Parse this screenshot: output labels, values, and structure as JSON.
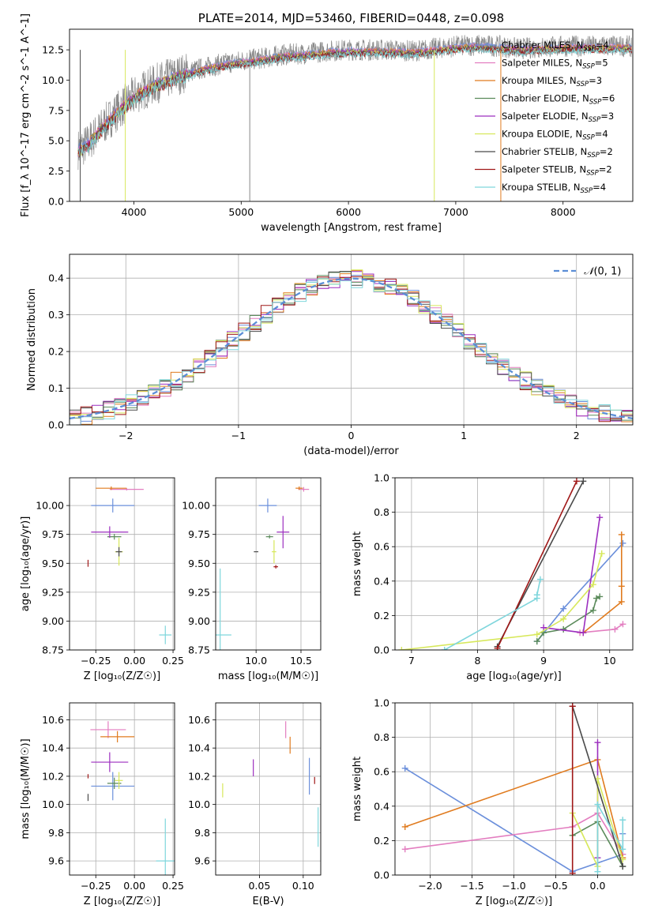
{
  "figure_title": "PLATE=2014, MJD=53460, FIBERID=0448, z=0.098",
  "legend_top": [
    {
      "label": "Chabrier MILES, N_SSP=4",
      "color": "#6b8fdb"
    },
    {
      "label": "Salpeter MILES, N_SSP=5",
      "color": "#e37ec0"
    },
    {
      "label": "Kroupa MILES, N_SSP=3",
      "color": "#e07b1f"
    },
    {
      "label": "Chabrier ELODIE, N_SSP=6",
      "color": "#5a8a5a"
    },
    {
      "label": "Salpeter ELODIE, N_SSP=3",
      "color": "#9c2fbf"
    },
    {
      "label": "Kroupa ELODIE, N_SSP=4",
      "color": "#d7e85b"
    },
    {
      "label": "Chabrier STELIB, N_SSP=2",
      "color": "#4a4a4a"
    },
    {
      "label": "Salpeter STELIB, N_SSP=2",
      "color": "#a01818"
    },
    {
      "label": "Kroupa STELIB, N_SSP=4",
      "color": "#7fd6dc"
    }
  ],
  "chart_data": [
    {
      "type": "line",
      "id": "spectrum",
      "xlabel": "wavelength [Angstrom, rest frame]",
      "ylabel": "Flux [f_λ 10^-17 erg cm^-2 s^-1 A^-1]",
      "xlim": [
        3400,
        8650
      ],
      "ylim": [
        0,
        14.2
      ],
      "xticks": [
        4000,
        5000,
        6000,
        7000,
        8000
      ],
      "yticks": [
        0.0,
        2.5,
        5.0,
        7.5,
        10.0,
        12.5
      ],
      "data_curve": {
        "x": [
          3480,
          3560,
          3650,
          3750,
          3850,
          3950,
          4050,
          4200,
          4400,
          4600,
          4800,
          5000,
          5200,
          5400,
          5600,
          5800,
          6000,
          6200,
          6400,
          6600,
          6800,
          7000,
          7200,
          7400,
          7600,
          7800,
          8000,
          8300,
          8600
        ],
        "y": [
          4.3,
          4.7,
          5.6,
          6.6,
          7.5,
          8.3,
          9.0,
          9.7,
          10.4,
          10.9,
          11.3,
          11.6,
          11.8,
          12.1,
          12.2,
          12.4,
          12.5,
          12.5,
          12.5,
          12.4,
          12.6,
          12.8,
          12.9,
          12.8,
          12.6,
          12.7,
          12.8,
          12.8,
          12.8
        ]
      },
      "vertical_artifacts": [
        {
          "x": 3500,
          "color": "#4a4a4a"
        },
        {
          "x": 3920,
          "color": "#d7e85b"
        },
        {
          "x": 5080,
          "color": "#888888"
        },
        {
          "x": 6800,
          "color": "#d7e85b"
        },
        {
          "x": 7420,
          "color": "#e07b1f"
        }
      ]
    },
    {
      "type": "bar",
      "id": "residuals",
      "xlabel": "(data-model)/error",
      "ylabel": "Normed distribution",
      "xlim": [
        -2.5,
        2.5
      ],
      "ylim": [
        0,
        0.465
      ],
      "xticks": [
        -2,
        -1,
        0,
        1,
        2
      ],
      "yticks": [
        0.0,
        0.1,
        0.2,
        0.3,
        0.4
      ],
      "bin_width": 0.1,
      "gaussian_label": "N(0,1)",
      "gaussian_color": "#5b8ed6",
      "noise_amplitude": 0.025
    },
    {
      "type": "scatter",
      "id": "age-vs-Z",
      "xlabel": "Z [log10(Z/Z☉)]",
      "ylabel": "age  [log10(age/yr)]",
      "xlim": [
        -0.42,
        0.26
      ],
      "ylim": [
        8.75,
        10.24
      ],
      "xticks": [
        -0.25,
        0.0,
        0.25
      ],
      "yticks": [
        8.75,
        9.0,
        9.25,
        9.5,
        9.75,
        10.0
      ],
      "points": [
        {
          "series": "Chabrier MILES",
          "x": -0.14,
          "y": 10.0,
          "xerr": 0.28,
          "yerr": 0.12
        },
        {
          "series": "Salpeter MILES",
          "x": -0.05,
          "y": 10.14,
          "xerr": 0.22,
          "yerr": 0.02
        },
        {
          "series": "Kroupa MILES",
          "x": -0.15,
          "y": 10.15,
          "xerr": 0.2,
          "yerr": 0.03
        },
        {
          "series": "Chabrier ELODIE",
          "x": -0.13,
          "y": 9.73,
          "xerr": 0.09,
          "yerr": 0.05
        },
        {
          "series": "Salpeter ELODIE",
          "x": -0.16,
          "y": 9.77,
          "xerr": 0.24,
          "yerr": 0.1
        },
        {
          "series": "Kroupa ELODIE",
          "x": -0.1,
          "y": 9.6,
          "xerr": 0.05,
          "yerr": 0.24
        },
        {
          "series": "Chabrier STELIB",
          "x": -0.1,
          "y": 9.6,
          "xerr": 0.04,
          "yerr": 0.08
        },
        {
          "series": "Salpeter STELIB",
          "x": -0.3,
          "y": 9.5,
          "xerr": 0.0,
          "yerr": 0.06
        },
        {
          "series": "Kroupa STELIB",
          "x": 0.2,
          "y": 8.88,
          "xerr": 0.08,
          "yerr": 0.16
        }
      ]
    },
    {
      "type": "scatter",
      "id": "age-vs-mass",
      "xlabel": "mass [log10(M/M☉)]",
      "ylabel": "",
      "xlim": [
        9.55,
        10.72
      ],
      "ylim": [
        8.75,
        10.24
      ],
      "xticks": [
        10.0,
        10.5
      ],
      "yticks": [
        8.75,
        9.0,
        9.25,
        9.5,
        9.75,
        10.0
      ],
      "points": [
        {
          "series": "Chabrier MILES",
          "x": 10.13,
          "y": 10.0,
          "xerr": 0.2,
          "yerr": 0.12
        },
        {
          "series": "Salpeter MILES",
          "x": 10.53,
          "y": 10.14,
          "xerr": 0.12,
          "yerr": 0.04
        },
        {
          "series": "Kroupa MILES",
          "x": 10.48,
          "y": 10.15,
          "xerr": 0.08,
          "yerr": 0.03
        },
        {
          "series": "Chabrier ELODIE",
          "x": 10.15,
          "y": 9.73,
          "xerr": 0.08,
          "yerr": 0.03
        },
        {
          "series": "Salpeter ELODIE",
          "x": 10.3,
          "y": 9.77,
          "xerr": 0.14,
          "yerr": 0.28
        },
        {
          "series": "Kroupa ELODIE",
          "x": 10.2,
          "y": 9.6,
          "xerr": 0.05,
          "yerr": 0.2
        },
        {
          "series": "Chabrier STELIB",
          "x": 10.0,
          "y": 9.6,
          "xerr": 0.05,
          "yerr": 0.0
        },
        {
          "series": "Salpeter STELIB",
          "x": 10.22,
          "y": 9.47,
          "xerr": 0.05,
          "yerr": 0.03
        },
        {
          "series": "Kroupa STELIB",
          "x": 9.6,
          "y": 8.88,
          "xerr": 0.25,
          "yerr": 1.15
        }
      ]
    },
    {
      "type": "line",
      "id": "massweight-vs-age",
      "xlabel": "age  [log10(age/yr)]",
      "ylabel": "mass weight",
      "xlim": [
        6.75,
        10.35
      ],
      "ylim": [
        0,
        1.0
      ],
      "xticks": [
        7,
        8,
        9,
        10
      ],
      "yticks": [
        0.0,
        0.2,
        0.4,
        0.6,
        0.8,
        1.0
      ],
      "series": [
        {
          "name": "Chabrier MILES",
          "x": [
            8.9,
            9.3,
            10.2
          ],
          "y": [
            0.05,
            0.24,
            0.62
          ]
        },
        {
          "name": "Salpeter MILES",
          "x": [
            9.55,
            10.08,
            10.2
          ],
          "y": [
            0.1,
            0.12,
            0.15
          ]
        },
        {
          "name": "Kroupa MILES",
          "x": [
            9.6,
            10.18,
            10.18,
            10.18
          ],
          "y": [
            0.1,
            0.28,
            0.37,
            0.67
          ]
        },
        {
          "name": "Chabrier ELODIE",
          "x": [
            8.9,
            9.0,
            9.3,
            9.75,
            9.8,
            9.85
          ],
          "y": [
            0.05,
            0.1,
            0.12,
            0.23,
            0.3,
            0.31
          ]
        },
        {
          "name": "Salpeter ELODIE",
          "x": [
            9.0,
            9.6,
            9.85
          ],
          "y": [
            0.13,
            0.1,
            0.77
          ]
        },
        {
          "name": "Kroupa ELODIE",
          "x": [
            6.85,
            8.9,
            9.3,
            9.75,
            9.88
          ],
          "y": [
            0.0,
            0.09,
            0.18,
            0.38,
            0.56
          ]
        },
        {
          "name": "Chabrier STELIB",
          "x": [
            8.3,
            9.6
          ],
          "y": [
            0.02,
            0.98
          ]
        },
        {
          "name": "Salpeter STELIB",
          "x": [
            8.3,
            9.5
          ],
          "y": [
            0.01,
            0.98
          ]
        },
        {
          "name": "Kroupa STELIB",
          "x": [
            7.5,
            8.9,
            8.9,
            8.95
          ],
          "y": [
            0.0,
            0.3,
            0.32,
            0.41
          ]
        }
      ]
    },
    {
      "type": "scatter",
      "id": "mass-vs-Z",
      "xlabel": "Z [log10(Z/Z☉)]",
      "ylabel": "mass [log10(M/M☉)]",
      "xlim": [
        -0.42,
        0.26
      ],
      "ylim": [
        9.5,
        10.72
      ],
      "xticks": [
        -0.25,
        0.0,
        0.25
      ],
      "yticks": [
        9.6,
        9.8,
        10.0,
        10.2,
        10.4,
        10.6
      ],
      "points": [
        {
          "series": "Chabrier MILES",
          "x": -0.14,
          "y": 10.13,
          "xerr": 0.28,
          "yerr": 0.2
        },
        {
          "series": "Salpeter MILES",
          "x": -0.17,
          "y": 10.53,
          "xerr": 0.23,
          "yerr": 0.12
        },
        {
          "series": "Kroupa MILES",
          "x": -0.11,
          "y": 10.48,
          "xerr": 0.22,
          "yerr": 0.08
        },
        {
          "series": "Chabrier ELODIE",
          "x": -0.13,
          "y": 10.15,
          "xerr": 0.09,
          "yerr": 0.08
        },
        {
          "series": "Salpeter ELODIE",
          "x": -0.16,
          "y": 10.3,
          "xerr": 0.24,
          "yerr": 0.14
        },
        {
          "series": "Kroupa ELODIE",
          "x": -0.1,
          "y": 10.17,
          "xerr": 0.05,
          "yerr": 0.12
        },
        {
          "series": "Chabrier STELIB",
          "x": -0.3,
          "y": 10.05,
          "xerr": 0.0,
          "yerr": 0.05
        },
        {
          "series": "Salpeter STELIB",
          "x": -0.3,
          "y": 10.2,
          "xerr": 0.0,
          "yerr": 0.03
        },
        {
          "series": "Kroupa STELIB",
          "x": 0.2,
          "y": 9.6,
          "xerr": 0.12,
          "yerr": 0.6
        }
      ]
    },
    {
      "type": "scatter",
      "id": "mass-vs-ebv",
      "xlabel": "E(B-V)",
      "ylabel": "",
      "xlim": [
        0.0,
        0.12
      ],
      "ylim": [
        9.5,
        10.72
      ],
      "xticks": [
        0.05,
        0.1
      ],
      "yticks": [
        9.6,
        9.8,
        10.0,
        10.2,
        10.4,
        10.6
      ],
      "points": [
        {
          "series": "Chabrier MILES",
          "x": 0.107,
          "y": 10.2,
          "xerr": 0.0,
          "yerr": 0.26
        },
        {
          "series": "Salpeter MILES",
          "x": 0.08,
          "y": 10.53,
          "xerr": 0.0,
          "yerr": 0.12
        },
        {
          "series": "Kroupa MILES",
          "x": 0.085,
          "y": 10.42,
          "xerr": 0.0,
          "yerr": 0.12
        },
        {
          "series": "Salpeter ELODIE",
          "x": 0.043,
          "y": 10.26,
          "xerr": 0.0,
          "yerr": 0.12
        },
        {
          "series": "Kroupa ELODIE",
          "x": 0.008,
          "y": 10.1,
          "xerr": 0.0,
          "yerr": 0.1
        },
        {
          "series": "Salpeter STELIB",
          "x": 0.113,
          "y": 10.17,
          "xerr": 0.0,
          "yerr": 0.05
        },
        {
          "series": "Kroupa STELIB",
          "x": 0.117,
          "y": 9.84,
          "xerr": 0.0,
          "yerr": 0.28
        }
      ]
    },
    {
      "type": "line",
      "id": "massweight-vs-Z",
      "xlabel": "Z [log10(Z/Z☉)]",
      "ylabel": "mass weight",
      "xlim": [
        -2.42,
        0.42
      ],
      "ylim": [
        0,
        1.0
      ],
      "xticks": [
        -2.0,
        -1.5,
        -1.0,
        -0.5,
        0.0
      ],
      "yticks": [
        0.0,
        0.2,
        0.4,
        0.6,
        0.8,
        1.0
      ],
      "series": [
        {
          "name": "Chabrier MILES",
          "x": [
            -2.3,
            -0.3,
            0.3,
            0.3
          ],
          "y": [
            0.62,
            0.02,
            0.12,
            0.24
          ]
        },
        {
          "name": "Salpeter MILES",
          "x": [
            -2.3,
            -0.3,
            0.0,
            0.3
          ],
          "y": [
            0.15,
            0.28,
            0.36,
            0.12
          ]
        },
        {
          "name": "Kroupa MILES",
          "x": [
            -2.3,
            0.0,
            0.3
          ],
          "y": [
            0.28,
            0.67,
            0.1
          ]
        },
        {
          "name": "Chabrier ELODIE",
          "x": [
            -0.3,
            0.0,
            0.3
          ],
          "y": [
            0.23,
            0.31,
            0.05
          ]
        },
        {
          "name": "Salpeter ELODIE",
          "x": [
            0.0,
            0.0
          ],
          "y": [
            0.1,
            0.77
          ]
        },
        {
          "name": "Kroupa ELODIE",
          "x": [
            -0.3,
            0.0,
            0.0,
            0.3
          ],
          "y": [
            0.36,
            0.05,
            0.56,
            0.09
          ]
        },
        {
          "name": "Chabrier STELIB",
          "x": [
            -0.3,
            0.3
          ],
          "y": [
            0.98,
            0.05
          ]
        },
        {
          "name": "Salpeter STELIB",
          "x": [
            -0.3,
            -0.3
          ],
          "y": [
            0.01,
            0.98
          ]
        },
        {
          "name": "Kroupa STELIB",
          "x": [
            0.0,
            0.0,
            0.3,
            0.3
          ],
          "y": [
            0.02,
            0.41,
            0.15,
            0.32
          ]
        }
      ]
    }
  ]
}
